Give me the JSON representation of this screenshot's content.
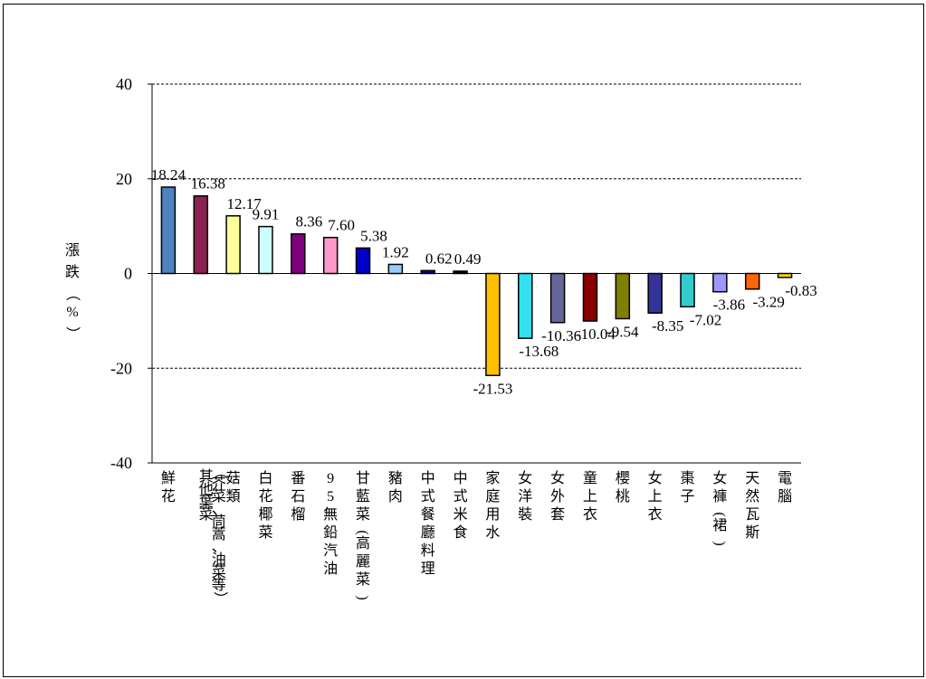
{
  "chart_data": {
    "type": "bar",
    "title": "",
    "xlabel": "",
    "ylabel": "漲跌（%）",
    "ylim": [
      -40,
      40
    ],
    "yticks": [
      40,
      20,
      0,
      -20,
      -40
    ],
    "grid": true,
    "categories": [
      "鮮花",
      "其他葉菜（芥菜、茼蒿、油菜等）",
      "菇類",
      "白花椰菜",
      "番石榴",
      "95無鉛汽油",
      "甘藍菜(高麗菜)",
      "豬肉",
      "中式餐廳料理",
      "中式米食",
      "家庭用水",
      "女洋裝",
      "女外套",
      "童上衣",
      "櫻桃",
      "女上衣",
      "棗子",
      "女褲(裙)",
      "天然瓦斯",
      "電腦"
    ],
    "values": [
      18.24,
      16.38,
      12.17,
      9.91,
      8.36,
      7.6,
      5.38,
      1.92,
      0.62,
      0.49,
      -21.53,
      -13.68,
      -10.36,
      -10.04,
      -9.54,
      -8.35,
      -7.02,
      -3.86,
      -3.29,
      -0.83
    ],
    "value_labels": [
      "18.24",
      "16.38",
      "12.17",
      "9.91",
      "8.36",
      "7.60",
      "5.38",
      "1.92",
      "0.62",
      "0.49",
      "-21.53",
      "-13.68",
      "-10.36",
      "-10.04",
      "-9.54",
      "-8.35",
      "-7.02",
      "-3.86",
      "-3.29",
      "-0.83"
    ],
    "colors": [
      "#4F81BD",
      "#8B2252",
      "#FFFF99",
      "#CCFFFF",
      "#800080",
      "#FF99CC",
      "#0000CC",
      "#99CCFF",
      "#000099",
      "#000000",
      "#FFC000",
      "#33E0F0",
      "#666699",
      "#8B0000",
      "#808000",
      "#333399",
      "#33CCCC",
      "#9999FF",
      "#FF6600",
      "#FFD700"
    ]
  }
}
